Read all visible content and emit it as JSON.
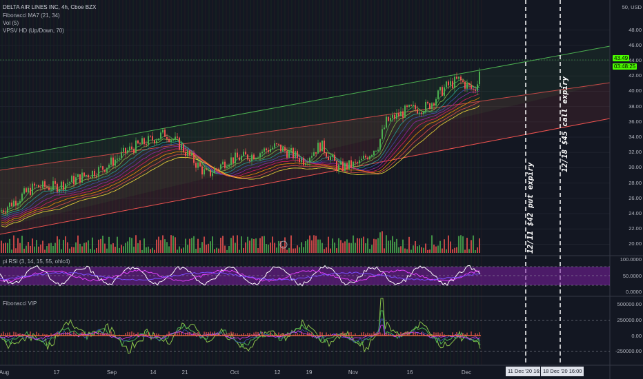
{
  "header": {
    "title": "DELTA AIR LINES INC, 4h, Cboe BZX",
    "indicators": [
      "Fibonacci MA7 (21, 34)",
      "Vol (5)",
      "VPSV HD (Up/Down, 70)"
    ]
  },
  "price_scale": {
    "currency": "50, USD",
    "labels": [
      "48.00",
      "46.00",
      "44.00",
      "42.00",
      "40.00",
      "38.00",
      "36.00",
      "34.00",
      "32.00",
      "30.00",
      "28.00",
      "26.00",
      "24.00",
      "22.00",
      "20.00"
    ],
    "last_price": "43.49",
    "countdown": "03:48:25"
  },
  "rsi_pane": {
    "title": "pi RSI (3, 14, 15, 55, ohlc4)",
    "labels": [
      "100.0000",
      "50.0000",
      "0.0000"
    ]
  },
  "vip_pane": {
    "title": "Fibonacci VIP",
    "labels": [
      "500000.00",
      "250000.00",
      "0.00",
      "-250000.00"
    ]
  },
  "x_axis": {
    "labels": [
      "Aug",
      "17",
      "Sep",
      "14",
      "21",
      "Oct",
      "12",
      "19",
      "Nov",
      "16",
      "Dec"
    ],
    "date_boxes": [
      "11 Dec '20   16:00",
      "18 Dec '20   16:00"
    ]
  },
  "annotations": {
    "put": "12/11 $42 put expiry",
    "call": "12/18 $45 call expiry"
  },
  "colors": {
    "background": "#131722",
    "green_channel": "#4caf50",
    "red_channel": "#ef5350",
    "rsi_band": "#7b1fa2",
    "last_price_badge": "#4cff00"
  },
  "chart_data": {
    "type": "candlestick",
    "x": [
      "Aug",
      "17",
      "Sep",
      "14",
      "21",
      "Oct",
      "12",
      "19",
      "Nov",
      "16",
      "Dec"
    ],
    "close_trend": [
      24.5,
      27,
      30,
      33,
      31,
      31.5,
      33,
      32,
      30,
      37,
      43.5
    ],
    "ylim": [
      19.5,
      50
    ],
    "last_close": 43.49
  }
}
